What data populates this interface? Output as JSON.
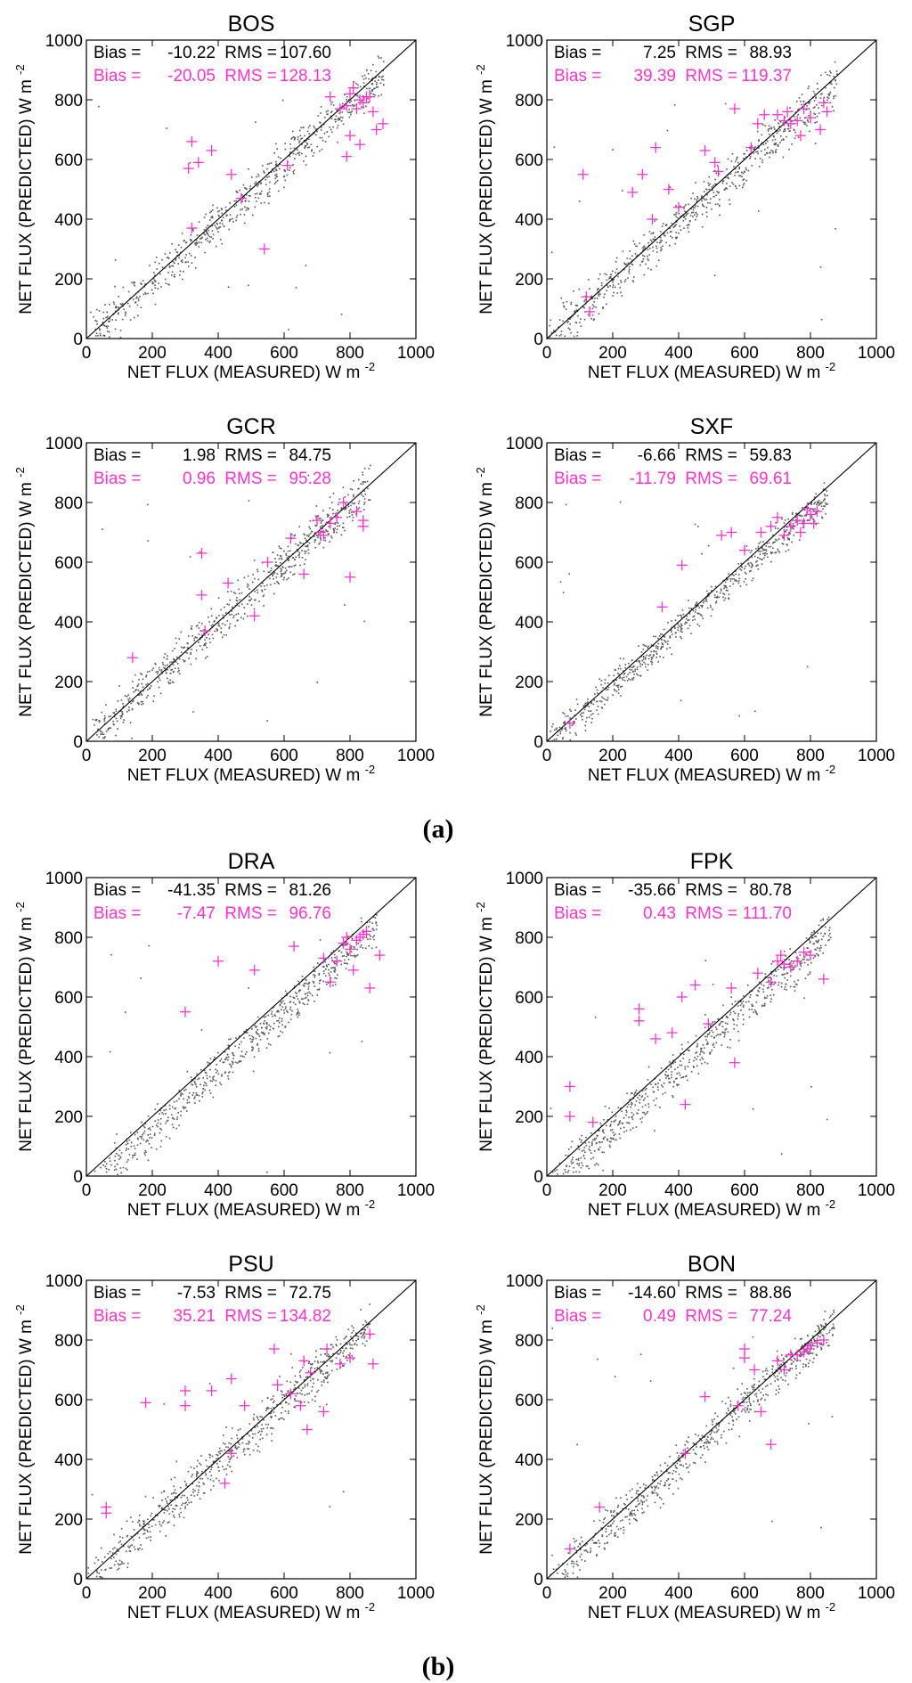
{
  "figure": {
    "group_labels": [
      {
        "id": "a",
        "text": "(",
        "letter": "a",
        "close": ")"
      },
      {
        "id": "b",
        "text": "(",
        "letter": "b",
        "close": ")"
      }
    ],
    "colors": {
      "all_points": "#555555",
      "highlight": "#ff33cc",
      "line": "#000000",
      "stat_all": "#000000",
      "stat_highlight": "#ff33cc"
    }
  },
  "chart_data": [
    {
      "type": "scatter",
      "title": "BOS",
      "xlabel": "NET FLUX (MEASURED) W m",
      "ylabel": "NET FLUX (PREDICTED) W m",
      "unit_sup": "-2",
      "xlim": [
        0,
        1000
      ],
      "ylim": [
        0,
        1000
      ],
      "xticks": [
        0,
        200,
        400,
        600,
        800,
        1000
      ],
      "yticks": [
        0,
        200,
        400,
        600,
        800,
        1000
      ],
      "stats": [
        {
          "label": "Bias =",
          "bias": "-10.22",
          "rms_label": "RMS =",
          "rms": "107.60"
        },
        {
          "label": "Bias =",
          "bias": "-20.05",
          "rms_label": "RMS =",
          "rms": "128.13"
        }
      ],
      "highlight": [
        [
          320,
          660
        ],
        [
          340,
          590
        ],
        [
          310,
          570
        ],
        [
          380,
          630
        ],
        [
          320,
          370
        ],
        [
          440,
          550
        ],
        [
          470,
          470
        ],
        [
          540,
          300
        ],
        [
          610,
          580
        ],
        [
          740,
          810
        ],
        [
          770,
          770
        ],
        [
          790,
          780
        ],
        [
          800,
          820
        ],
        [
          810,
          840
        ],
        [
          820,
          770
        ],
        [
          830,
          800
        ],
        [
          840,
          790
        ],
        [
          850,
          810
        ],
        [
          860,
          810
        ],
        [
          870,
          760
        ],
        [
          790,
          610
        ],
        [
          800,
          680
        ],
        [
          830,
          650
        ],
        [
          880,
          700
        ],
        [
          900,
          720
        ]
      ],
      "scatter_seed": 11,
      "scatter_bias": -10,
      "scatter_slope": 1.0,
      "scatter_spread": 55,
      "scatter_max": 900
    },
    {
      "type": "scatter",
      "title": "SGP",
      "xlabel": "NET FLUX (MEASURED) W m",
      "ylabel": "NET FLUX (PREDICTED) W m",
      "unit_sup": "-2",
      "xlim": [
        0,
        1000
      ],
      "ylim": [
        0,
        1000
      ],
      "xticks": [
        0,
        200,
        400,
        600,
        800,
        1000
      ],
      "yticks": [
        0,
        200,
        400,
        600,
        800,
        1000
      ],
      "stats": [
        {
          "label": "Bias =",
          "bias": "7.25",
          "rms_label": "RMS =",
          "rms": "88.93"
        },
        {
          "label": "Bias =",
          "bias": "39.39",
          "rms_label": "RMS =",
          "rms": "119.37"
        }
      ],
      "highlight": [
        [
          110,
          550
        ],
        [
          120,
          140
        ],
        [
          130,
          90
        ],
        [
          260,
          490
        ],
        [
          290,
          550
        ],
        [
          320,
          400
        ],
        [
          330,
          640
        ],
        [
          370,
          500
        ],
        [
          400,
          440
        ],
        [
          480,
          630
        ],
        [
          510,
          590
        ],
        [
          520,
          560
        ],
        [
          570,
          770
        ],
        [
          620,
          640
        ],
        [
          640,
          720
        ],
        [
          660,
          750
        ],
        [
          700,
          750
        ],
        [
          720,
          730
        ],
        [
          730,
          760
        ],
        [
          740,
          720
        ],
        [
          760,
          730
        ],
        [
          770,
          680
        ],
        [
          780,
          770
        ],
        [
          800,
          740
        ],
        [
          830,
          700
        ],
        [
          840,
          790
        ],
        [
          850,
          760
        ]
      ],
      "scatter_seed": 23,
      "scatter_bias": 5,
      "scatter_slope": 0.97,
      "scatter_spread": 55,
      "scatter_max": 880
    },
    {
      "type": "scatter",
      "title": "GCR",
      "xlabel": "NET FLUX (MEASURED) W m",
      "ylabel": "NET FLUX (PREDICTED) W m",
      "unit_sup": "-2",
      "xlim": [
        0,
        1000
      ],
      "ylim": [
        0,
        1000
      ],
      "xticks": [
        0,
        200,
        400,
        600,
        800,
        1000
      ],
      "yticks": [
        0,
        200,
        400,
        600,
        800,
        1000
      ],
      "stats": [
        {
          "label": "Bias =",
          "bias": "1.98",
          "rms_label": "RMS =",
          "rms": "84.75"
        },
        {
          "label": "Bias =",
          "bias": "0.96",
          "rms_label": "RMS =",
          "rms": "95.28"
        }
      ],
      "highlight": [
        [
          140,
          280
        ],
        [
          350,
          630
        ],
        [
          350,
          490
        ],
        [
          360,
          370
        ],
        [
          430,
          530
        ],
        [
          510,
          420
        ],
        [
          550,
          600
        ],
        [
          620,
          680
        ],
        [
          660,
          560
        ],
        [
          700,
          740
        ],
        [
          710,
          700
        ],
        [
          720,
          690
        ],
        [
          740,
          730
        ],
        [
          760,
          750
        ],
        [
          780,
          800
        ],
        [
          800,
          550
        ],
        [
          820,
          770
        ],
        [
          840,
          740
        ],
        [
          840,
          720
        ]
      ],
      "scatter_seed": 37,
      "scatter_bias": 2,
      "scatter_slope": 1.0,
      "scatter_spread": 55,
      "scatter_max": 860
    },
    {
      "type": "scatter",
      "title": "SXF",
      "xlabel": "NET FLUX (MEASURED) W m",
      "ylabel": "NET FLUX (PREDICTED) W m",
      "unit_sup": "-2",
      "xlim": [
        0,
        1000
      ],
      "ylim": [
        0,
        1000
      ],
      "xticks": [
        0,
        200,
        400,
        600,
        800,
        1000
      ],
      "yticks": [
        0,
        200,
        400,
        600,
        800,
        1000
      ],
      "stats": [
        {
          "label": "Bias =",
          "bias": "-6.66",
          "rms_label": "RMS =",
          "rms": "59.83"
        },
        {
          "label": "Bias =",
          "bias": "-11.79",
          "rms_label": "RMS =",
          "rms": "69.61"
        }
      ],
      "highlight": [
        [
          70,
          60
        ],
        [
          350,
          450
        ],
        [
          410,
          590
        ],
        [
          530,
          690
        ],
        [
          560,
          700
        ],
        [
          600,
          640
        ],
        [
          650,
          700
        ],
        [
          680,
          720
        ],
        [
          700,
          750
        ],
        [
          720,
          690
        ],
        [
          740,
          720
        ],
        [
          760,
          740
        ],
        [
          770,
          700
        ],
        [
          780,
          730
        ],
        [
          790,
          780
        ],
        [
          800,
          760
        ],
        [
          810,
          730
        ],
        [
          820,
          770
        ]
      ],
      "scatter_seed": 41,
      "scatter_bias": -5,
      "scatter_slope": 0.97,
      "scatter_spread": 40,
      "scatter_max": 850
    },
    {
      "type": "scatter",
      "title": "DRA",
      "xlabel": "NET FLUX (MEASURED) W m",
      "ylabel": "NET FLUX (PREDICTED) W m",
      "unit_sup": "-2",
      "xlim": [
        0,
        1000
      ],
      "ylim": [
        0,
        1000
      ],
      "xticks": [
        0,
        200,
        400,
        600,
        800,
        1000
      ],
      "yticks": [
        0,
        200,
        400,
        600,
        800,
        1000
      ],
      "stats": [
        {
          "label": "Bias =",
          "bias": "-41.35",
          "rms_label": "RMS =",
          "rms": "81.26"
        },
        {
          "label": "Bias =",
          "bias": "-7.47",
          "rms_label": "RMS =",
          "rms": "96.76"
        }
      ],
      "highlight": [
        [
          300,
          550
        ],
        [
          400,
          720
        ],
        [
          510,
          690
        ],
        [
          630,
          770
        ],
        [
          720,
          730
        ],
        [
          740,
          650
        ],
        [
          760,
          720
        ],
        [
          780,
          780
        ],
        [
          790,
          800
        ],
        [
          800,
          760
        ],
        [
          810,
          690
        ],
        [
          820,
          790
        ],
        [
          830,
          800
        ],
        [
          840,
          810
        ],
        [
          850,
          820
        ],
        [
          860,
          630
        ],
        [
          890,
          740
        ]
      ],
      "scatter_seed": 53,
      "scatter_bias": -40,
      "scatter_slope": 1.0,
      "scatter_spread": 50,
      "scatter_max": 880
    },
    {
      "type": "scatter",
      "title": "FPK",
      "xlabel": "NET FLUX (MEASURED) W m",
      "ylabel": "NET FLUX (PREDICTED) W m",
      "unit_sup": "-2",
      "xlim": [
        0,
        1000
      ],
      "ylim": [
        0,
        1000
      ],
      "xticks": [
        0,
        200,
        400,
        600,
        800,
        1000
      ],
      "yticks": [
        0,
        200,
        400,
        600,
        800,
        1000
      ],
      "stats": [
        {
          "label": "Bias =",
          "bias": "-35.66",
          "rms_label": "RMS =",
          "rms": "80.78"
        },
        {
          "label": "Bias =",
          "bias": "0.43",
          "rms_label": "RMS =",
          "rms": "111.70"
        }
      ],
      "highlight": [
        [
          70,
          300
        ],
        [
          70,
          200
        ],
        [
          140,
          180
        ],
        [
          280,
          560
        ],
        [
          280,
          520
        ],
        [
          330,
          460
        ],
        [
          380,
          480
        ],
        [
          410,
          600
        ],
        [
          420,
          240
        ],
        [
          450,
          640
        ],
        [
          490,
          510
        ],
        [
          560,
          630
        ],
        [
          570,
          380
        ],
        [
          640,
          680
        ],
        [
          680,
          650
        ],
        [
          700,
          720
        ],
        [
          710,
          740
        ],
        [
          720,
          710
        ],
        [
          740,
          700
        ],
        [
          760,
          720
        ],
        [
          780,
          750
        ],
        [
          800,
          740
        ],
        [
          840,
          660
        ]
      ],
      "scatter_seed": 67,
      "scatter_bias": -35,
      "scatter_slope": 1.0,
      "scatter_spread": 55,
      "scatter_max": 860
    },
    {
      "type": "scatter",
      "title": "PSU",
      "xlabel": "NET FLUX (MEASURED) W m",
      "ylabel": "NET FLUX (PREDICTED) W m",
      "unit_sup": "-2",
      "xlim": [
        0,
        1000
      ],
      "ylim": [
        0,
        1000
      ],
      "xticks": [
        0,
        200,
        400,
        600,
        800,
        1000
      ],
      "yticks": [
        0,
        200,
        400,
        600,
        800,
        1000
      ],
      "stats": [
        {
          "label": "Bias =",
          "bias": "-7.53",
          "rms_label": "RMS =",
          "rms": "72.75"
        },
        {
          "label": "Bias =",
          "bias": "35.21",
          "rms_label": "RMS =",
          "rms": "134.82"
        }
      ],
      "highlight": [
        [
          60,
          240
        ],
        [
          60,
          220
        ],
        [
          180,
          590
        ],
        [
          300,
          630
        ],
        [
          300,
          580
        ],
        [
          380,
          630
        ],
        [
          420,
          320
        ],
        [
          440,
          670
        ],
        [
          440,
          420
        ],
        [
          480,
          580
        ],
        [
          570,
          770
        ],
        [
          580,
          650
        ],
        [
          620,
          620
        ],
        [
          650,
          580
        ],
        [
          660,
          730
        ],
        [
          670,
          500
        ],
        [
          680,
          690
        ],
        [
          720,
          560
        ],
        [
          730,
          770
        ],
        [
          770,
          720
        ],
        [
          800,
          740
        ],
        [
          860,
          820
        ],
        [
          870,
          720
        ]
      ],
      "scatter_seed": 79,
      "scatter_bias": -5,
      "scatter_slope": 1.0,
      "scatter_spread": 55,
      "scatter_max": 860
    },
    {
      "type": "scatter",
      "title": "BON",
      "xlabel": "NET FLUX (MEASURED) W m",
      "ylabel": "NET FLUX (PREDICTED) W m",
      "unit_sup": "-2",
      "xlim": [
        0,
        1000
      ],
      "ylim": [
        0,
        1000
      ],
      "xticks": [
        0,
        200,
        400,
        600,
        800,
        1000
      ],
      "yticks": [
        0,
        200,
        400,
        600,
        800,
        1000
      ],
      "stats": [
        {
          "label": "Bias =",
          "bias": "-14.60",
          "rms_label": "RMS =",
          "rms": "88.86"
        },
        {
          "label": "Bias =",
          "bias": "0.49",
          "rms_label": "RMS =",
          "rms": "77.24"
        }
      ],
      "highlight": [
        [
          70,
          100
        ],
        [
          160,
          240
        ],
        [
          420,
          420
        ],
        [
          480,
          610
        ],
        [
          580,
          580
        ],
        [
          600,
          770
        ],
        [
          600,
          740
        ],
        [
          630,
          700
        ],
        [
          650,
          560
        ],
        [
          680,
          450
        ],
        [
          700,
          730
        ],
        [
          720,
          700
        ],
        [
          740,
          750
        ],
        [
          760,
          750
        ],
        [
          780,
          760
        ],
        [
          790,
          770
        ],
        [
          800,
          780
        ],
        [
          820,
          790
        ],
        [
          840,
          800
        ]
      ],
      "scatter_seed": 97,
      "scatter_bias": -14,
      "scatter_slope": 1.0,
      "scatter_spread": 50,
      "scatter_max": 870
    }
  ]
}
